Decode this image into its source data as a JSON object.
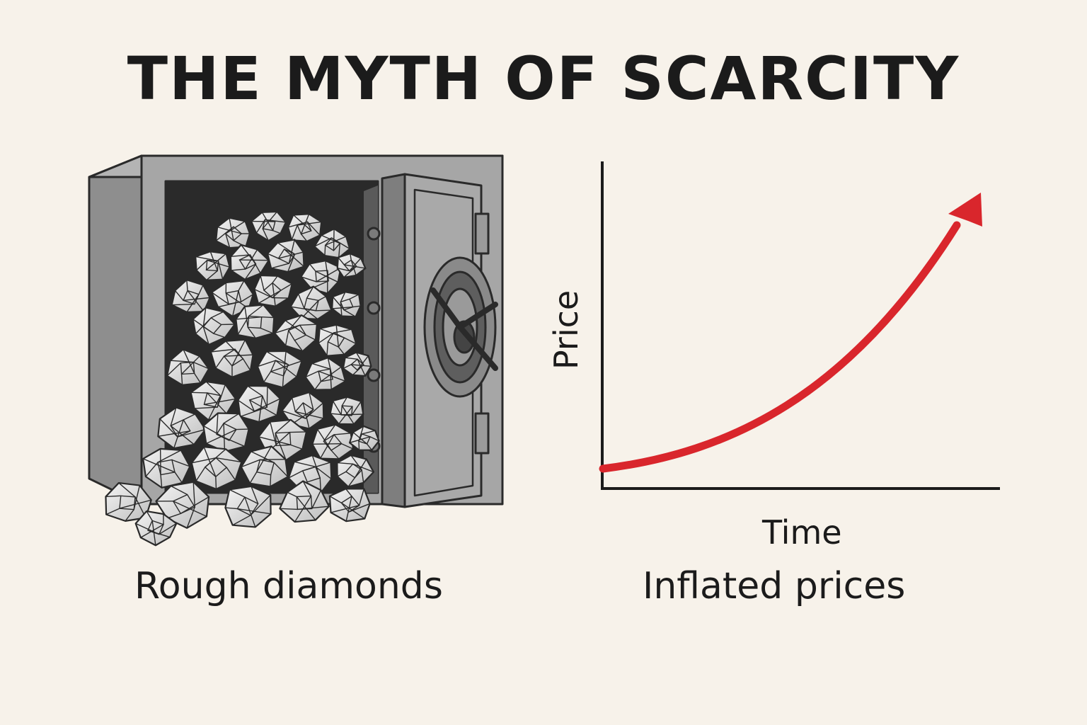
{
  "title": "THE MYTH OF SCARCITY",
  "left_caption": "Rough diamonds",
  "right_caption": "Inflated prices",
  "chart": {
    "xlabel": "Time",
    "ylabel": "Price",
    "trend": "rising-curve",
    "colors": {
      "trend": "#d9262c",
      "axes": "#1b1b1b"
    }
  },
  "colors": {
    "background": "#f7f2ea",
    "safe": "#9a9a9a",
    "diamond": "#e2e2e2"
  },
  "icons": [
    "safe-icon",
    "diamond-pile-icon",
    "dial-icon",
    "trend-arrow-icon"
  ]
}
